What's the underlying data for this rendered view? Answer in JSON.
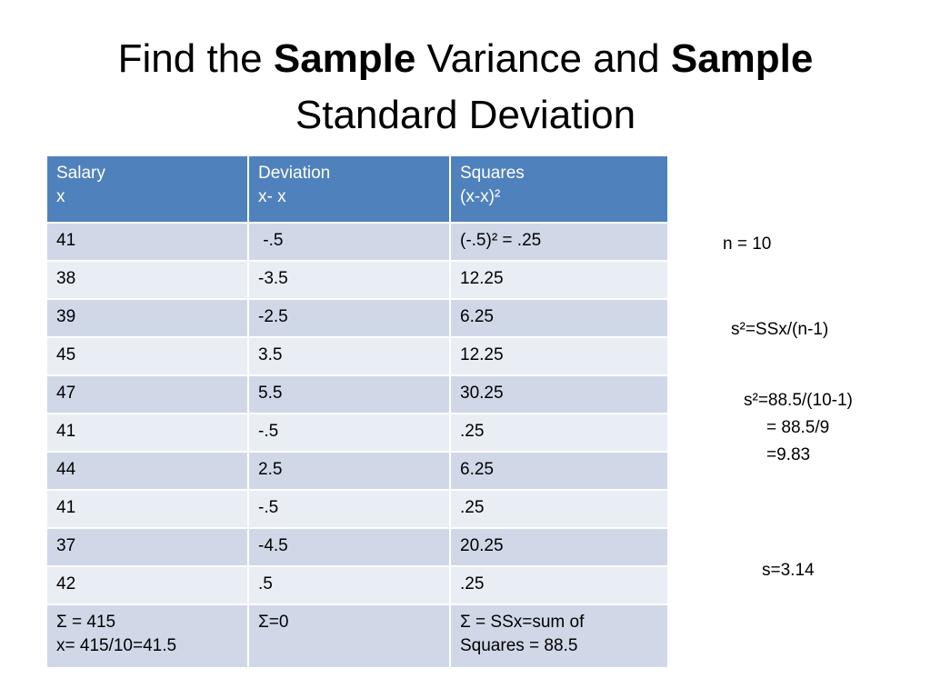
{
  "title": {
    "part1": "Find the ",
    "bold1": "Sample",
    "part2": " Variance and ",
    "bold2": "Sample",
    "line2": "Standard Deviation"
  },
  "table": {
    "headers": [
      {
        "line1": "Salary",
        "line2": "x"
      },
      {
        "line1": "Deviation",
        "line2": "x- x"
      },
      {
        "line1": "Squares",
        "line2": "(x-x)²"
      }
    ],
    "rows": [
      [
        "41",
        " -.5",
        "(-.5)² = .25"
      ],
      [
        "38",
        "-3.5",
        "12.25"
      ],
      [
        "39",
        "-2.5",
        "6.25"
      ],
      [
        "45",
        "3.5",
        "12.25"
      ],
      [
        "47",
        "5.5",
        "30.25"
      ],
      [
        "41",
        "-.5",
        ".25"
      ],
      [
        "44",
        "2.5",
        "6.25"
      ],
      [
        "41",
        "-.5",
        ".25"
      ],
      [
        "37",
        "-4.5",
        "20.25"
      ],
      [
        "42",
        ".5",
        ".25"
      ]
    ],
    "summary": [
      {
        "line1": "Σ = 415",
        "line2": "x= 415/10=41.5"
      },
      {
        "line1": "Σ=0",
        "line2": ""
      },
      {
        "line1": "Σ = SSx=sum of",
        "line2": "Squares = 88.5"
      }
    ]
  },
  "notes": {
    "n": "n = 10",
    "formula": "s²=SSx/(n-1)",
    "calc_line1": "s²=88.5/(10-1)",
    "calc_line2": "= 88.5/9",
    "calc_line3": "=9.83",
    "s": "s=3.14"
  }
}
